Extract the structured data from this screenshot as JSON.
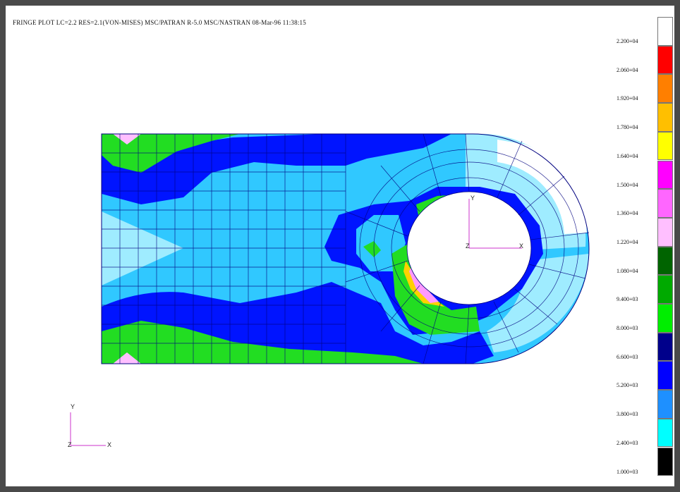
{
  "title": "FRINGE PLOT  LC=2.2 RES=2.1(VON-MISES) MSC/PATRAN R-5.0 MSC/NASTRAN 08-Mar-96 11:38:15",
  "legend": {
    "labels": [
      "2.200+04",
      "2.060+04",
      "1.920+04",
      "1.780+04",
      "1.640+04",
      "1.500+04",
      "1.360+04",
      "1.220+04",
      "1.080+04",
      "9.400+03",
      "8.000+03",
      "6.600+03",
      "5.200+03",
      "3.800+03",
      "2.400+03",
      "1.000+03"
    ],
    "colors": [
      "#ffffff",
      "#ff0000",
      "#ff7f00",
      "#ffbf00",
      "#ffff00",
      "#ff00ff",
      "#ff66ff",
      "#ffbfff",
      "#006400",
      "#00aa00",
      "#00ee00",
      "#00008b",
      "#0000ff",
      "#1e90ff",
      "#00ffff",
      "#000000"
    ]
  },
  "colors": {
    "mesh": "#00007f",
    "white": "#ffffff",
    "light_cyan": "#7fe3ff",
    "cyan": "#30c8ff",
    "blue": "#0014ff",
    "green": "#22dd22",
    "dark_green": "#18b018",
    "pink": "#ffbfff",
    "magenta": "#ff33ff",
    "yellow": "#ffd000",
    "orange": "#ffb000",
    "axis": "#cc33cc"
  },
  "axes": {
    "model": {
      "x": "X",
      "y": "Y",
      "z": "Z"
    },
    "global": {
      "x": "X",
      "y": "Y",
      "z": "Z"
    }
  }
}
